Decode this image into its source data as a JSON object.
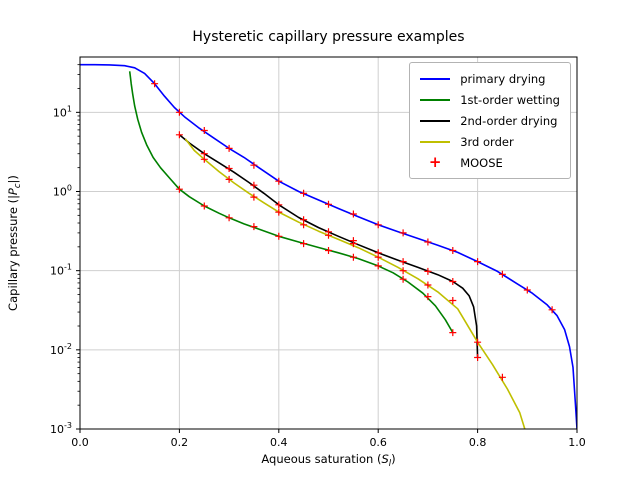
{
  "chart_data": {
    "type": "line",
    "title": "Hysteretic capillary pressure examples",
    "xlabel": {
      "pre": "Aqueous saturation (",
      "var": "S",
      "sub": "l",
      "post": ")"
    },
    "ylabel": {
      "pre": "Capillary pressure (|",
      "var": "P",
      "sub": "c",
      "post": "|)"
    },
    "xlim": [
      0.0,
      1.0
    ],
    "ylim": [
      0.001,
      50
    ],
    "yscale": "log",
    "grid": true,
    "legend_position": "upper right",
    "x_ticks": [
      0.0,
      0.2,
      0.4,
      0.6,
      0.8,
      1.0
    ],
    "x_tick_labels": [
      "0.0",
      "0.2",
      "0.4",
      "0.6",
      "0.8",
      "1.0"
    ],
    "y_tick_exponents": [
      -3,
      -2,
      -1,
      0,
      1
    ],
    "colors": {
      "grid": "#cfcfcf",
      "axis": "#000000",
      "background": "#ffffff"
    },
    "series": [
      {
        "name": "primary drying",
        "color": "#0000ff",
        "points": [
          [
            0.0,
            40
          ],
          [
            0.03,
            40
          ],
          [
            0.06,
            39.7
          ],
          [
            0.09,
            38.8
          ],
          [
            0.11,
            36.5
          ],
          [
            0.13,
            31
          ],
          [
            0.15,
            23
          ],
          [
            0.17,
            16
          ],
          [
            0.19,
            11.5
          ],
          [
            0.21,
            8.8
          ],
          [
            0.24,
            6.3
          ],
          [
            0.27,
            4.7
          ],
          [
            0.3,
            3.5
          ],
          [
            0.33,
            2.7
          ],
          [
            0.36,
            2.0
          ],
          [
            0.4,
            1.35
          ],
          [
            0.44,
            1.0
          ],
          [
            0.48,
            0.78
          ],
          [
            0.52,
            0.61
          ],
          [
            0.56,
            0.48
          ],
          [
            0.6,
            0.38
          ],
          [
            0.64,
            0.31
          ],
          [
            0.68,
            0.255
          ],
          [
            0.72,
            0.21
          ],
          [
            0.76,
            0.17
          ],
          [
            0.8,
            0.13
          ],
          [
            0.84,
            0.098
          ],
          [
            0.88,
            0.068
          ],
          [
            0.91,
            0.052
          ],
          [
            0.94,
            0.037
          ],
          [
            0.96,
            0.027
          ],
          [
            0.975,
            0.018
          ],
          [
            0.985,
            0.011
          ],
          [
            0.992,
            0.006
          ],
          [
            0.997,
            0.002
          ],
          [
            1.0,
            0.001
          ]
        ]
      },
      {
        "name": "1st-order wetting",
        "color": "#008000",
        "points": [
          [
            0.1,
            33
          ],
          [
            0.1015,
            28
          ],
          [
            0.103,
            23
          ],
          [
            0.106,
            17
          ],
          [
            0.11,
            12
          ],
          [
            0.116,
            8.2
          ],
          [
            0.124,
            5.6
          ],
          [
            0.134,
            3.9
          ],
          [
            0.147,
            2.7
          ],
          [
            0.162,
            2.0
          ],
          [
            0.18,
            1.48
          ],
          [
            0.2,
            1.07
          ],
          [
            0.22,
            0.86
          ],
          [
            0.25,
            0.655
          ],
          [
            0.28,
            0.53
          ],
          [
            0.3,
            0.465
          ],
          [
            0.33,
            0.39
          ],
          [
            0.36,
            0.335
          ],
          [
            0.4,
            0.272
          ],
          [
            0.44,
            0.23
          ],
          [
            0.48,
            0.196
          ],
          [
            0.52,
            0.168
          ],
          [
            0.56,
            0.142
          ],
          [
            0.6,
            0.115
          ],
          [
            0.63,
            0.094
          ],
          [
            0.66,
            0.072
          ],
          [
            0.69,
            0.052
          ],
          [
            0.715,
            0.036
          ],
          [
            0.735,
            0.024
          ],
          [
            0.75,
            0.0165
          ]
        ]
      },
      {
        "name": "2nd-order drying",
        "color": "#000000",
        "points": [
          [
            0.2,
            5.2
          ],
          [
            0.22,
            4.1
          ],
          [
            0.25,
            3.0
          ],
          [
            0.28,
            2.3
          ],
          [
            0.31,
            1.75
          ],
          [
            0.34,
            1.3
          ],
          [
            0.37,
            0.95
          ],
          [
            0.4,
            0.68
          ],
          [
            0.44,
            0.47
          ],
          [
            0.48,
            0.35
          ],
          [
            0.52,
            0.272
          ],
          [
            0.56,
            0.213
          ],
          [
            0.6,
            0.168
          ],
          [
            0.64,
            0.135
          ],
          [
            0.68,
            0.11
          ],
          [
            0.72,
            0.089
          ],
          [
            0.75,
            0.073
          ],
          [
            0.77,
            0.06
          ],
          [
            0.783,
            0.048
          ],
          [
            0.792,
            0.035
          ],
          [
            0.798,
            0.02
          ],
          [
            0.8,
            0.008
          ]
        ]
      },
      {
        "name": "3rd order",
        "color": "#bfbf00",
        "points": [
          [
            0.212,
            4.6
          ],
          [
            0.23,
            3.3
          ],
          [
            0.25,
            2.55
          ],
          [
            0.28,
            1.78
          ],
          [
            0.31,
            1.28
          ],
          [
            0.34,
            0.95
          ],
          [
            0.37,
            0.72
          ],
          [
            0.4,
            0.55
          ],
          [
            0.44,
            0.41
          ],
          [
            0.48,
            0.315
          ],
          [
            0.52,
            0.248
          ],
          [
            0.56,
            0.195
          ],
          [
            0.6,
            0.148
          ],
          [
            0.64,
            0.11
          ],
          [
            0.68,
            0.079
          ],
          [
            0.72,
            0.054
          ],
          [
            0.76,
            0.033
          ],
          [
            0.8,
            0.0125
          ],
          [
            0.83,
            0.0065
          ],
          [
            0.86,
            0.0032
          ],
          [
            0.885,
            0.0016
          ],
          [
            0.895,
            0.001
          ]
        ]
      }
    ],
    "markers": {
      "name": "MOOSE",
      "color": "#ff0000",
      "symbol": "+",
      "points": [
        [
          0.15,
          23
        ],
        [
          0.2,
          10
        ],
        [
          0.25,
          5.9
        ],
        [
          0.3,
          3.5
        ],
        [
          0.35,
          2.15
        ],
        [
          0.4,
          1.35
        ],
        [
          0.45,
          0.95
        ],
        [
          0.5,
          0.69
        ],
        [
          0.55,
          0.52
        ],
        [
          0.6,
          0.38
        ],
        [
          0.65,
          0.3
        ],
        [
          0.7,
          0.23
        ],
        [
          0.75,
          0.18
        ],
        [
          0.8,
          0.13
        ],
        [
          0.85,
          0.09
        ],
        [
          0.9,
          0.057
        ],
        [
          0.95,
          0.032
        ],
        [
          0.2,
          1.07
        ],
        [
          0.25,
          0.655
        ],
        [
          0.3,
          0.465
        ],
        [
          0.35,
          0.36
        ],
        [
          0.4,
          0.272
        ],
        [
          0.45,
          0.22
        ],
        [
          0.5,
          0.18
        ],
        [
          0.55,
          0.148
        ],
        [
          0.6,
          0.115
        ],
        [
          0.65,
          0.078
        ],
        [
          0.7,
          0.047
        ],
        [
          0.75,
          0.0165
        ],
        [
          0.2,
          5.2
        ],
        [
          0.25,
          3.0
        ],
        [
          0.3,
          1.95
        ],
        [
          0.35,
          1.2
        ],
        [
          0.4,
          0.68
        ],
        [
          0.45,
          0.44
        ],
        [
          0.5,
          0.31
        ],
        [
          0.55,
          0.24
        ],
        [
          0.6,
          0.168
        ],
        [
          0.65,
          0.13
        ],
        [
          0.7,
          0.098
        ],
        [
          0.75,
          0.073
        ],
        [
          0.8,
          0.008
        ],
        [
          0.25,
          2.55
        ],
        [
          0.3,
          1.42
        ],
        [
          0.35,
          0.85
        ],
        [
          0.4,
          0.55
        ],
        [
          0.45,
          0.38
        ],
        [
          0.5,
          0.28
        ],
        [
          0.55,
          0.22
        ],
        [
          0.6,
          0.148
        ],
        [
          0.65,
          0.1
        ],
        [
          0.7,
          0.066
        ],
        [
          0.75,
          0.042
        ],
        [
          0.8,
          0.0125
        ],
        [
          0.85,
          0.0045
        ]
      ]
    }
  }
}
